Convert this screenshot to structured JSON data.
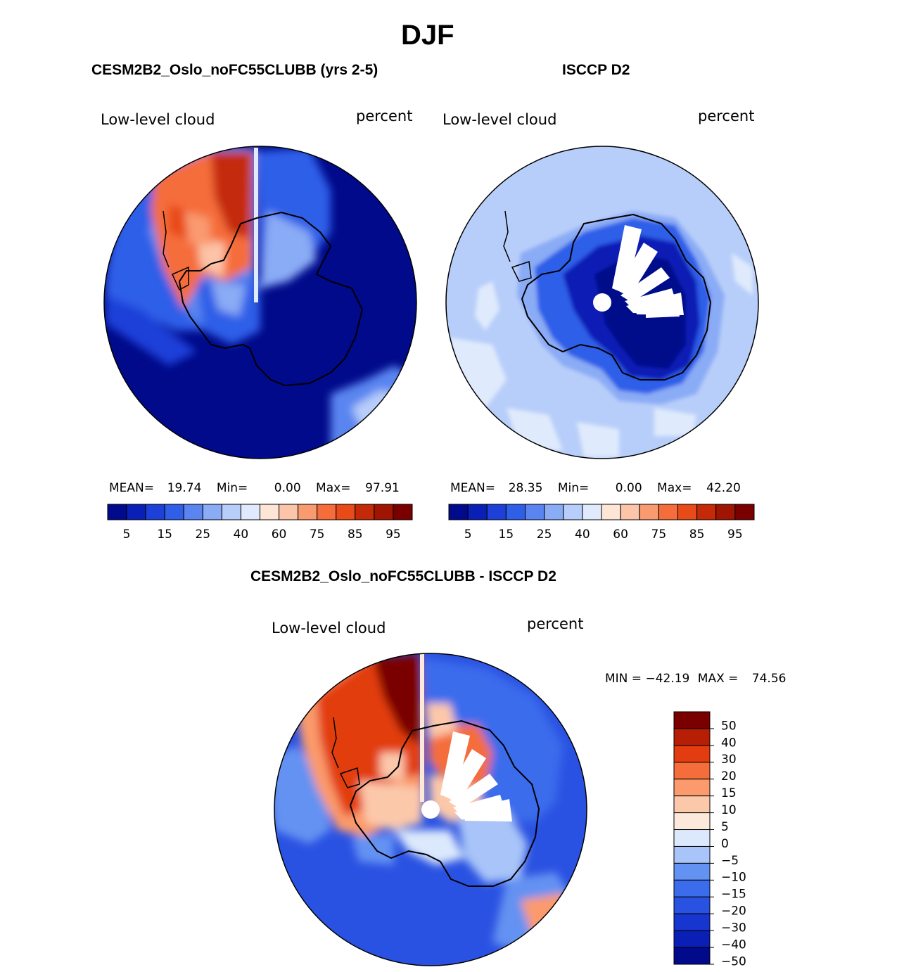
{
  "page_title": "DJF",
  "panels": {
    "model": {
      "title": "CESM2B2_Oslo_noFC55CLUBB (yrs 2-5)",
      "variable": "Low-level cloud",
      "units": "percent",
      "stats": {
        "mean_label": "MEAN=",
        "mean": "19.74",
        "min_label": "Min=",
        "min": "0.00",
        "max_label": "Max=",
        "max": "97.91"
      }
    },
    "obs": {
      "title": "ISCCP D2",
      "variable": "Low-level cloud",
      "units": "percent",
      "stats": {
        "mean_label": "MEAN=",
        "mean": "28.35",
        "min_label": "Min=",
        "min": "0.00",
        "max_label": "Max=",
        "max": "42.20"
      }
    },
    "diff": {
      "title": "CESM2B2_Oslo_noFC55CLUBB - ISCCP D2",
      "variable": "Low-level cloud",
      "units": "percent",
      "stats": {
        "min_label": "MIN =",
        "min": "−42.19",
        "max_label": "MAX =",
        "max": "74.56"
      }
    }
  },
  "colorbar_abs": {
    "colors": [
      "#000a8a",
      "#0a1fb5",
      "#1c40d8",
      "#2f5ee8",
      "#5a85f0",
      "#8aabf5",
      "#b8cefa",
      "#dfeafc",
      "#fde6d6",
      "#fcc4a8",
      "#fa9a70",
      "#f56d3a",
      "#e84a18",
      "#c42a08",
      "#a01402",
      "#7a0000"
    ],
    "ticks": [
      "5",
      "15",
      "25",
      "40",
      "60",
      "75",
      "85",
      "95"
    ]
  },
  "colorbar_diff": {
    "colors": [
      "#000a8a",
      "#0a1fb5",
      "#1736cf",
      "#2a52e2",
      "#3b6cec",
      "#6392f2",
      "#a8c4f8",
      "#dce9fc",
      "#fde9dc",
      "#fcc8aa",
      "#fb9a6c",
      "#f56d3a",
      "#e23c10",
      "#b61e05",
      "#7a0000"
    ],
    "ticks": [
      "50",
      "40",
      "30",
      "20",
      "15",
      "10",
      "5",
      "0",
      "−5",
      "−10",
      "−15",
      "−20",
      "−30",
      "−40",
      "−50"
    ]
  }
}
